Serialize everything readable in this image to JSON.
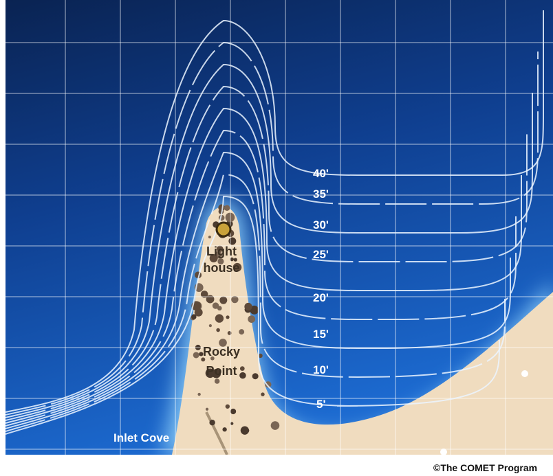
{
  "map": {
    "depth_labels": [
      "40'",
      "35'",
      "30'",
      "25'",
      "20'",
      "15'",
      "10'",
      "5'"
    ],
    "places": {
      "lighthouse": [
        "Light",
        "house"
      ],
      "rocky_point": [
        "Rocky",
        "Point"
      ],
      "inlet_cove": "Inlet Cove"
    },
    "credit": "©The COMET Program"
  }
}
